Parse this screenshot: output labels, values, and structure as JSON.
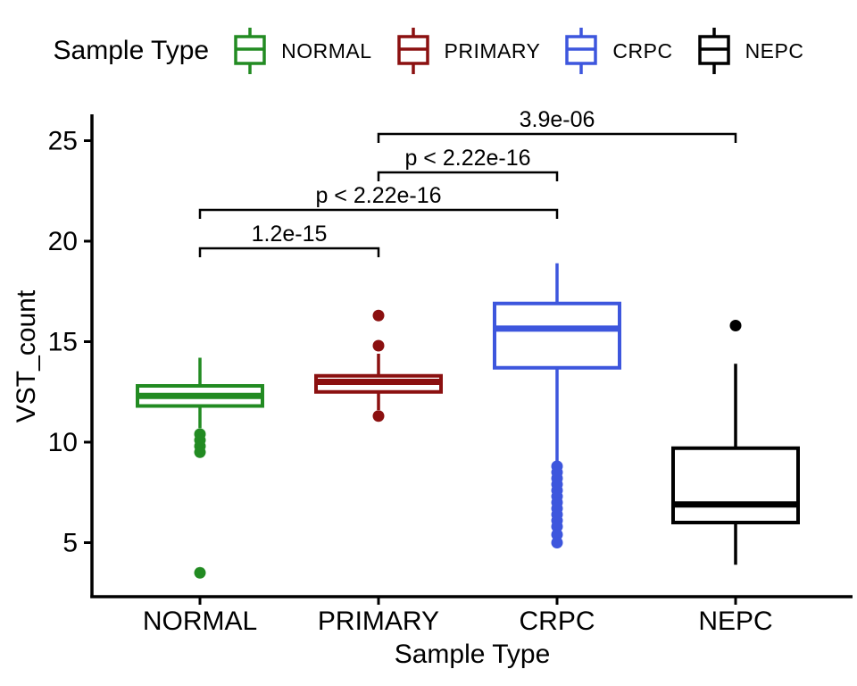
{
  "legend": {
    "title": "Sample Type",
    "items": [
      {
        "label": "NORMAL",
        "color": "#228B22"
      },
      {
        "label": "PRIMARY",
        "color": "#8B1010"
      },
      {
        "label": "CRPC",
        "color": "#3D56DD"
      },
      {
        "label": "NEPC",
        "color": "#000000"
      }
    ]
  },
  "chart_data": {
    "type": "boxplot",
    "title": "",
    "xlabel": "Sample Type",
    "ylabel": "VST_count",
    "categories": [
      "NORMAL",
      "PRIMARY",
      "CRPC",
      "NEPC"
    ],
    "colors": [
      "#228B22",
      "#8B1010",
      "#3D56DD",
      "#000000"
    ],
    "yticks": [
      5,
      10,
      15,
      20,
      25
    ],
    "ylim": [
      2.3,
      26.2
    ],
    "grid": false,
    "legend_position": "top",
    "series": [
      {
        "name": "NORMAL",
        "whisker_low": 10.7,
        "q1": 11.8,
        "median": 12.3,
        "q3": 12.8,
        "whisker_high": 14.2,
        "outliers": [
          10.4,
          10.1,
          9.8,
          9.5,
          3.5
        ]
      },
      {
        "name": "PRIMARY",
        "whisker_low": 11.6,
        "q1": 12.5,
        "median": 13.0,
        "q3": 13.3,
        "whisker_high": 14.4,
        "outliers": [
          16.3,
          14.8,
          11.3
        ]
      },
      {
        "name": "CRPC",
        "whisker_low": 9.0,
        "q1": 13.7,
        "median": 15.65,
        "q3": 16.9,
        "whisker_high": 18.9,
        "outliers": [
          8.8,
          8.5,
          8.2,
          7.9,
          7.6,
          7.3,
          7.0,
          6.7,
          6.4,
          6.1,
          5.8,
          5.4,
          5.0
        ]
      },
      {
        "name": "NEPC",
        "whisker_low": 3.9,
        "q1": 6.0,
        "median": 6.9,
        "q3": 9.7,
        "whisker_high": 13.9,
        "outliers": [
          15.8
        ]
      }
    ],
    "comparisons": [
      {
        "group1": "PRIMARY",
        "group2": "NEPC",
        "label": "3.9e-06"
      },
      {
        "group1": "PRIMARY",
        "group2": "CRPC",
        "label": "p < 2.22e-16"
      },
      {
        "group1": "NORMAL",
        "group2": "CRPC",
        "label": "p < 2.22e-16"
      },
      {
        "group1": "NORMAL",
        "group2": "PRIMARY",
        "label": "1.2e-15"
      }
    ]
  }
}
